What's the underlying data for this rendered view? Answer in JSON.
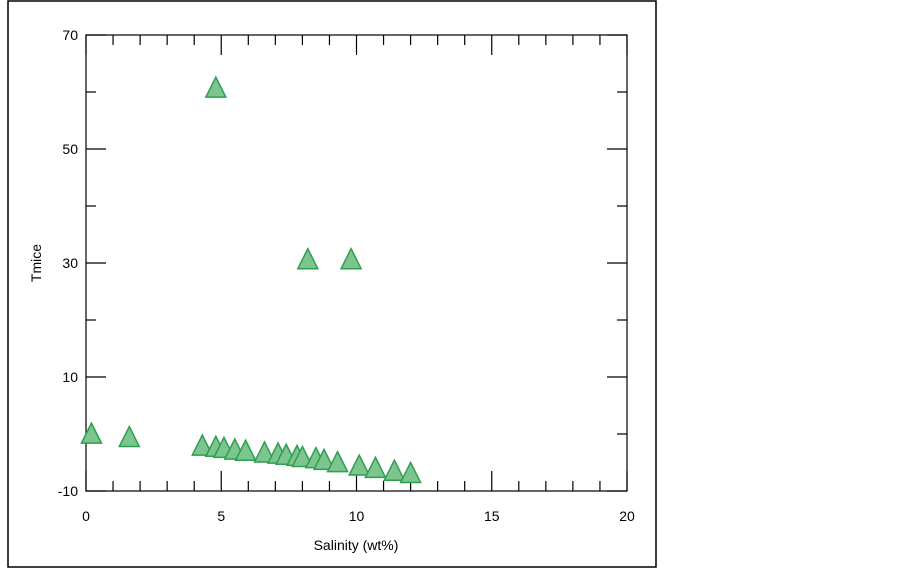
{
  "chart_data": {
    "type": "scatter",
    "title": "",
    "xlabel": "Salinity (wt%)",
    "ylabel": "Tmice",
    "xlim": [
      0,
      20
    ],
    "ylim": [
      -10,
      70
    ],
    "x_major_ticks": [
      0,
      5,
      10,
      15,
      20
    ],
    "x_minor_ticks": [
      1,
      2,
      3,
      4,
      6,
      7,
      8,
      9,
      11,
      12,
      13,
      14,
      16,
      17,
      18,
      19
    ],
    "y_major_ticks": [
      -10,
      10,
      30,
      50,
      70
    ],
    "y_minor_ticks": [
      0,
      20,
      40,
      60
    ],
    "x_tick_labels": [
      "0",
      "5",
      "10",
      "15",
      "20"
    ],
    "y_tick_labels": [
      "-10",
      "10",
      "30",
      "50",
      "70"
    ],
    "grid": false,
    "legend": "none",
    "colors": {
      "marker_fill": "#7cc58f",
      "marker_stroke": "#2e9e4f",
      "axis": "#000000",
      "frame": "#000000"
    },
    "series": [
      {
        "marker": "triangle",
        "points": [
          {
            "x": 0.2,
            "y": -0.2
          },
          {
            "x": 1.6,
            "y": -0.8
          },
          {
            "x": 4.3,
            "y": -2.3
          },
          {
            "x": 4.8,
            "y": -2.5
          },
          {
            "x": 5.1,
            "y": -2.7
          },
          {
            "x": 5.5,
            "y": -3.0
          },
          {
            "x": 5.9,
            "y": -3.2
          },
          {
            "x": 6.6,
            "y": -3.5
          },
          {
            "x": 7.1,
            "y": -3.7
          },
          {
            "x": 7.4,
            "y": -3.9
          },
          {
            "x": 7.8,
            "y": -4.1
          },
          {
            "x": 8.0,
            "y": -4.3
          },
          {
            "x": 8.5,
            "y": -4.5
          },
          {
            "x": 8.8,
            "y": -4.8
          },
          {
            "x": 9.3,
            "y": -5.2
          },
          {
            "x": 10.1,
            "y": -5.8
          },
          {
            "x": 10.7,
            "y": -6.2
          },
          {
            "x": 11.4,
            "y": -6.7
          },
          {
            "x": 12.0,
            "y": -7.1
          },
          {
            "x": 4.8,
            "y": 60.5
          },
          {
            "x": 8.2,
            "y": 30.4
          },
          {
            "x": 9.8,
            "y": 30.4
          }
        ]
      }
    ]
  }
}
